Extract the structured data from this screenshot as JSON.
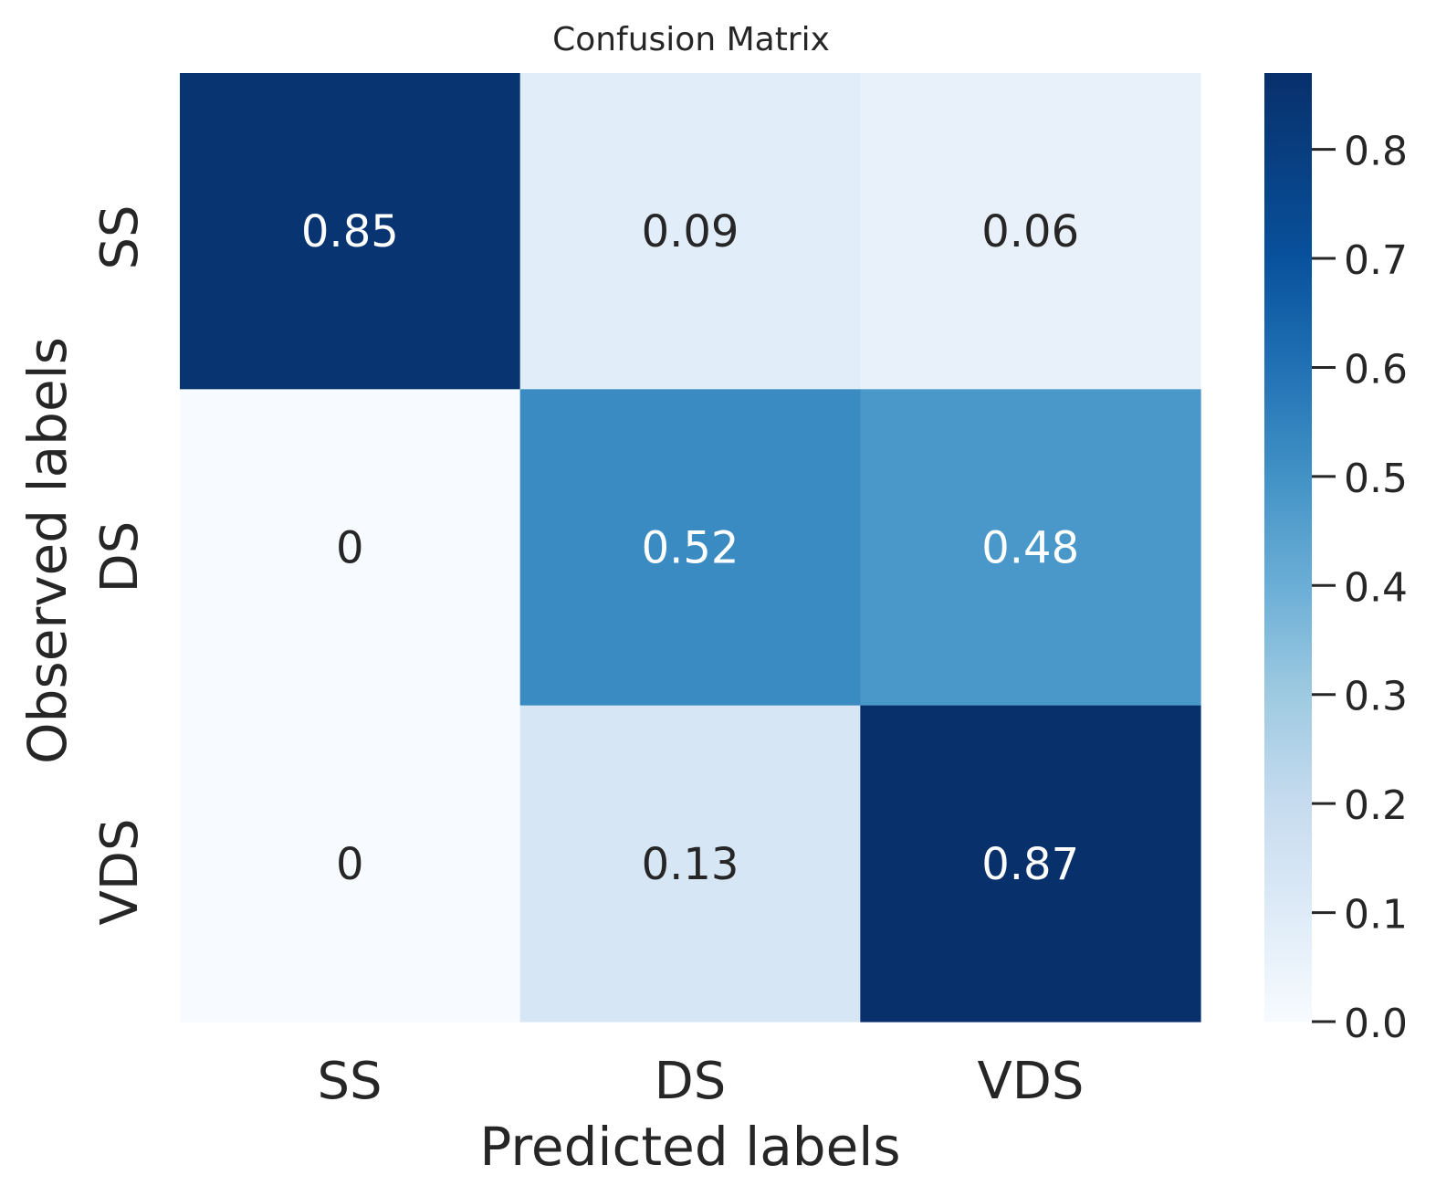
{
  "chart_data": {
    "type": "heatmap",
    "title": "Confusion Matrix",
    "xlabel": "Predicted labels",
    "ylabel": "Observed labels",
    "x_categories": [
      "SS",
      "DS",
      "VDS"
    ],
    "y_categories": [
      "SS",
      "DS",
      "VDS"
    ],
    "values": [
      [
        0.85,
        0.09,
        0.06
      ],
      [
        0,
        0.52,
        0.48
      ],
      [
        0,
        0.13,
        0.87
      ]
    ],
    "cell_labels": [
      [
        "0.85",
        "0.09",
        "0.06"
      ],
      [
        "0",
        "0.52",
        "0.48"
      ],
      [
        "0",
        "0.13",
        "0.87"
      ]
    ],
    "colormap": "Blues",
    "colorbar": {
      "range": [
        0,
        0.87
      ],
      "ticks": [
        0.0,
        0.1,
        0.2,
        0.3,
        0.4,
        0.5,
        0.6,
        0.7,
        0.8
      ],
      "tick_labels": [
        "0.0",
        "0.1",
        "0.2",
        "0.3",
        "0.4",
        "0.5",
        "0.6",
        "0.7",
        "0.8"
      ]
    }
  }
}
